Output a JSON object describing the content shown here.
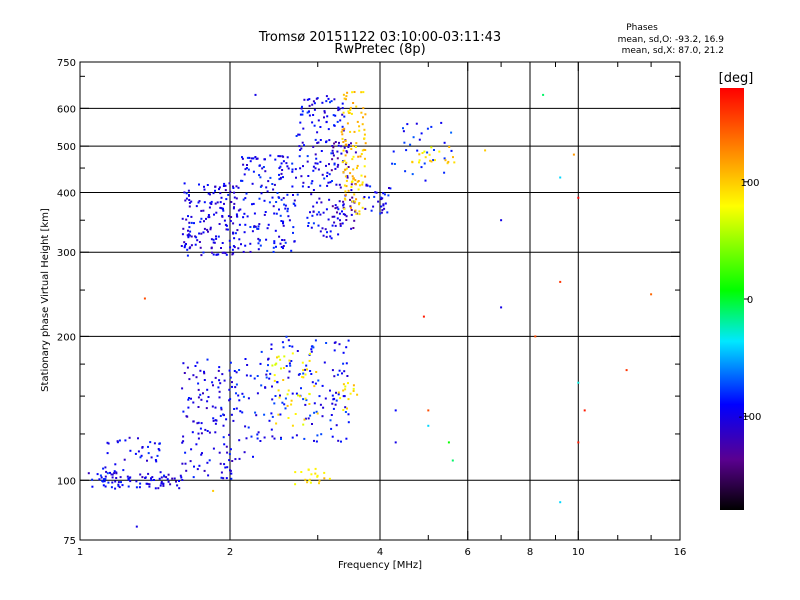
{
  "chart_data": {
    "type": "scatter",
    "title": "Tromsø 20151122 03:10:00-03:11:43",
    "subtitle": "RwPretec (8p)",
    "xlabel": "Frequency [MHz]",
    "ylabel": "Stationary phase Virtual Height [km]",
    "x_scale": "log",
    "y_scale": "log",
    "xlim": [
      1,
      16
    ],
    "ylim": [
      75,
      750
    ],
    "x_ticks": [
      1,
      2,
      4,
      6,
      8,
      10,
      16
    ],
    "x_tick_labels": [
      "1",
      "2",
      "4",
      "6",
      "8",
      "10",
      "16"
    ],
    "x_grid": [
      2,
      4,
      6,
      8,
      10
    ],
    "y_ticks": [
      75,
      100,
      200,
      300,
      400,
      500,
      600,
      750
    ],
    "y_tick_labels": [
      "75",
      "100",
      "200",
      "300",
      "400",
      "500",
      "600",
      "750"
    ],
    "y_grid": [
      100,
      200,
      300,
      400,
      500,
      600
    ],
    "grid": true,
    "stats": {
      "header": "Phases",
      "line1": "mean, sd,O:  -93.2, 16.9",
      "line2": "mean, sd,X:  87.0, 21.2"
    },
    "colorbar": {
      "label": "[deg]",
      "range": [
        -180,
        180
      ],
      "ticks": [
        100,
        0,
        -100
      ],
      "tick_labels": [
        "100",
        "0",
        "-100"
      ],
      "placement": "right"
    },
    "clusters": [
      {
        "series": "O",
        "f": [
          1.0,
          1.6
        ],
        "h": [
          96,
          104
        ],
        "phase": -100,
        "n": 80
      },
      {
        "series": "O",
        "f": [
          1.1,
          1.45
        ],
        "h": [
          100,
          125
        ],
        "phase": -95,
        "n": 45
      },
      {
        "series": "O",
        "f": [
          1.6,
          2.05
        ],
        "h": [
          100,
          180
        ],
        "phase": -100,
        "n": 130
      },
      {
        "series": "O",
        "f": [
          2.05,
          2.4
        ],
        "h": [
          110,
          190
        ],
        "phase": -90,
        "n": 40
      },
      {
        "series": "O",
        "f": [
          2.35,
          3.5
        ],
        "h": [
          120,
          200
        ],
        "phase": -90,
        "n": 130
      },
      {
        "series": "X",
        "f": [
          2.4,
          3.0
        ],
        "h": [
          130,
          185
        ],
        "phase": 85,
        "n": 45
      },
      {
        "series": "X",
        "f": [
          3.3,
          3.6
        ],
        "h": [
          140,
          160
        ],
        "phase": 90,
        "n": 15
      },
      {
        "series": "X",
        "f": [
          2.7,
          3.2
        ],
        "h": [
          98,
          106
        ],
        "phase": 90,
        "n": 20
      },
      {
        "series": "O",
        "f": [
          1.6,
          2.1
        ],
        "h": [
          295,
          420
        ],
        "phase": -100,
        "n": 170
      },
      {
        "series": "O",
        "f": [
          2.1,
          2.7
        ],
        "h": [
          300,
          480
        ],
        "phase": -95,
        "n": 150
      },
      {
        "series": "O",
        "f": [
          2.7,
          3.4
        ],
        "h": [
          320,
          640
        ],
        "phase": -95,
        "n": 170
      },
      {
        "series": "O",
        "f": [
          3.2,
          3.6
        ],
        "h": [
          330,
          520
        ],
        "phase": -120,
        "n": 60
      },
      {
        "series": "X",
        "f": [
          3.35,
          3.75
        ],
        "h": [
          360,
          650
        ],
        "phase": 100,
        "n": 110
      },
      {
        "series": "O",
        "f": [
          3.7,
          4.2
        ],
        "h": [
          360,
          420
        ],
        "phase": -95,
        "n": 30
      },
      {
        "series": "O",
        "f": [
          4.2,
          5.6
        ],
        "h": [
          420,
          560
        ],
        "phase": -85,
        "n": 30
      },
      {
        "series": "X",
        "f": [
          4.6,
          5.7
        ],
        "h": [
          460,
          500
        ],
        "phase": 90,
        "n": 20
      }
    ],
    "points": [
      {
        "f": 1.3,
        "h": 80,
        "phase": -100
      },
      {
        "f": 1.35,
        "h": 240,
        "phase": 150
      },
      {
        "f": 1.85,
        "h": 95,
        "phase": 100
      },
      {
        "f": 4.3,
        "h": 120,
        "phase": -100
      },
      {
        "f": 4.3,
        "h": 140,
        "phase": -90
      },
      {
        "f": 4.9,
        "h": 220,
        "phase": 170
      },
      {
        "f": 5.0,
        "h": 140,
        "phase": 150
      },
      {
        "f": 5.6,
        "h": 110,
        "phase": -10
      },
      {
        "f": 5.5,
        "h": 120,
        "phase": 10
      },
      {
        "f": 5.0,
        "h": 130,
        "phase": -40
      },
      {
        "f": 6.5,
        "h": 490,
        "phase": 100
      },
      {
        "f": 7.0,
        "h": 350,
        "phase": -100
      },
      {
        "f": 7.0,
        "h": 230,
        "phase": -100
      },
      {
        "f": 8.2,
        "h": 200,
        "phase": 150
      },
      {
        "f": 8.5,
        "h": 640,
        "phase": -10
      },
      {
        "f": 9.2,
        "h": 430,
        "phase": -40
      },
      {
        "f": 9.2,
        "h": 260,
        "phase": 160
      },
      {
        "f": 9.2,
        "h": 90,
        "phase": -40
      },
      {
        "f": 9.8,
        "h": 480,
        "phase": 120
      },
      {
        "f": 10.0,
        "h": 390,
        "phase": 180
      },
      {
        "f": 10.0,
        "h": 160,
        "phase": -30
      },
      {
        "f": 10.0,
        "h": 120,
        "phase": 170
      },
      {
        "f": 10.3,
        "h": 140,
        "phase": 170
      },
      {
        "f": 12.5,
        "h": 170,
        "phase": 160
      },
      {
        "f": 14.0,
        "h": 245,
        "phase": 140
      },
      {
        "f": 2.25,
        "h": 640,
        "phase": -100
      }
    ]
  }
}
